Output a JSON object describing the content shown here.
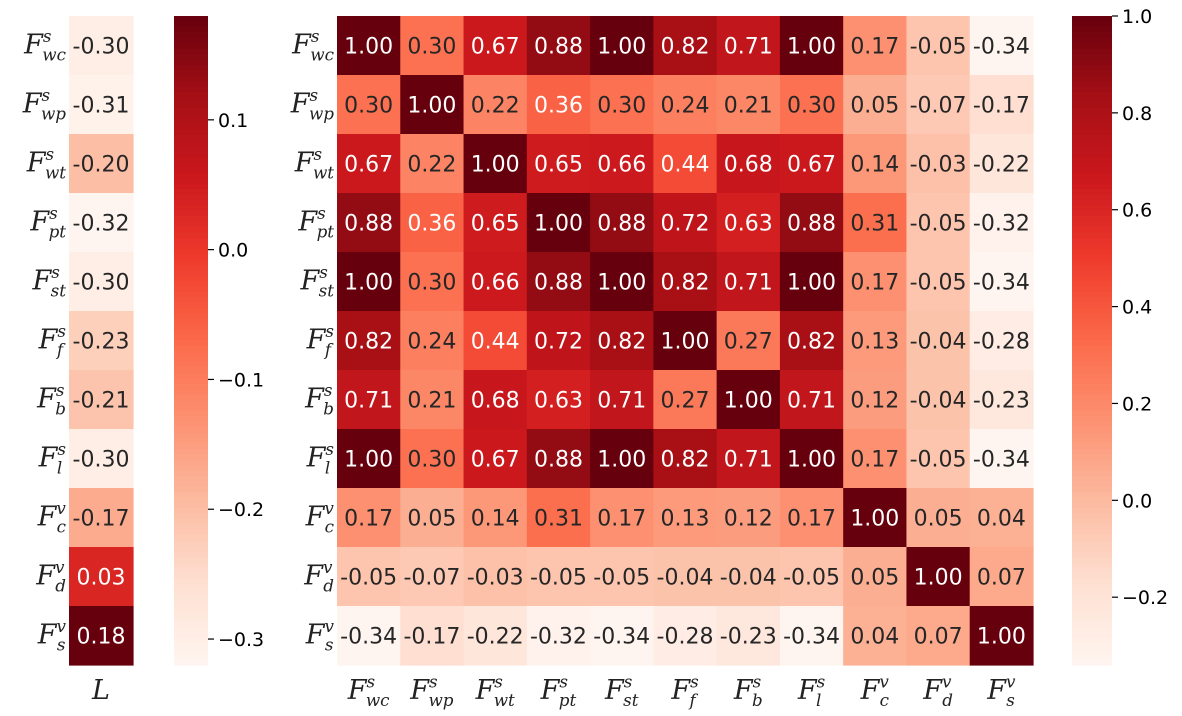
{
  "chart_data": [
    {
      "type": "heatmap",
      "rows": [
        {
          "base": "F",
          "sup": "s",
          "sub": "wc"
        },
        {
          "base": "F",
          "sup": "s",
          "sub": "wp"
        },
        {
          "base": "F",
          "sup": "s",
          "sub": "wt"
        },
        {
          "base": "F",
          "sup": "s",
          "sub": "pt"
        },
        {
          "base": "F",
          "sup": "s",
          "sub": "st"
        },
        {
          "base": "F",
          "sup": "s",
          "sub": "f"
        },
        {
          "base": "F",
          "sup": "s",
          "sub": "b"
        },
        {
          "base": "F",
          "sup": "s",
          "sub": "l"
        },
        {
          "base": "F",
          "sup": "v",
          "sub": "c"
        },
        {
          "base": "F",
          "sup": "v",
          "sub": "d"
        },
        {
          "base": "F",
          "sup": "v",
          "sub": "s"
        }
      ],
      "columns": [
        {
          "base": "L"
        }
      ],
      "values": [
        [
          -0.3
        ],
        [
          -0.31
        ],
        [
          -0.2
        ],
        [
          -0.32
        ],
        [
          -0.3
        ],
        [
          -0.23
        ],
        [
          -0.21
        ],
        [
          -0.3
        ],
        [
          -0.17
        ],
        [
          0.03
        ],
        [
          0.18
        ]
      ],
      "cell_labels": [
        [
          "-0.30"
        ],
        [
          "-0.31"
        ],
        [
          "-0.20"
        ],
        [
          "-0.32"
        ],
        [
          "-0.30"
        ],
        [
          "-0.23"
        ],
        [
          "-0.21"
        ],
        [
          "-0.30"
        ],
        [
          "-0.17"
        ],
        [
          "0.03"
        ],
        [
          "0.18"
        ]
      ],
      "colormap": "Reds",
      "vmin": -0.32,
      "vmax": 0.18,
      "colorbar_ticks": [
        "0.1",
        "0.0",
        "−0.1",
        "−0.2",
        "−0.3"
      ],
      "colorbar_tick_values": [
        0.1,
        0.0,
        -0.1,
        -0.2,
        -0.3
      ]
    },
    {
      "type": "heatmap",
      "rows": [
        {
          "base": "F",
          "sup": "s",
          "sub": "wc"
        },
        {
          "base": "F",
          "sup": "s",
          "sub": "wp"
        },
        {
          "base": "F",
          "sup": "s",
          "sub": "wt"
        },
        {
          "base": "F",
          "sup": "s",
          "sub": "pt"
        },
        {
          "base": "F",
          "sup": "s",
          "sub": "st"
        },
        {
          "base": "F",
          "sup": "s",
          "sub": "f"
        },
        {
          "base": "F",
          "sup": "s",
          "sub": "b"
        },
        {
          "base": "F",
          "sup": "s",
          "sub": "l"
        },
        {
          "base": "F",
          "sup": "v",
          "sub": "c"
        },
        {
          "base": "F",
          "sup": "v",
          "sub": "d"
        },
        {
          "base": "F",
          "sup": "v",
          "sub": "s"
        }
      ],
      "columns": [
        {
          "base": "F",
          "sup": "s",
          "sub": "wc"
        },
        {
          "base": "F",
          "sup": "s",
          "sub": "wp"
        },
        {
          "base": "F",
          "sup": "s",
          "sub": "wt"
        },
        {
          "base": "F",
          "sup": "s",
          "sub": "pt"
        },
        {
          "base": "F",
          "sup": "s",
          "sub": "st"
        },
        {
          "base": "F",
          "sup": "s",
          "sub": "f"
        },
        {
          "base": "F",
          "sup": "s",
          "sub": "b"
        },
        {
          "base": "F",
          "sup": "s",
          "sub": "l"
        },
        {
          "base": "F",
          "sup": "v",
          "sub": "c"
        },
        {
          "base": "F",
          "sup": "v",
          "sub": "d"
        },
        {
          "base": "F",
          "sup": "v",
          "sub": "s"
        }
      ],
      "values": [
        [
          1.0,
          0.3,
          0.67,
          0.88,
          1.0,
          0.82,
          0.71,
          1.0,
          0.17,
          -0.05,
          -0.34
        ],
        [
          0.3,
          1.0,
          0.22,
          0.36,
          0.3,
          0.24,
          0.21,
          0.3,
          0.05,
          -0.07,
          -0.17
        ],
        [
          0.67,
          0.22,
          1.0,
          0.65,
          0.66,
          0.44,
          0.68,
          0.67,
          0.14,
          -0.03,
          -0.22
        ],
        [
          0.88,
          0.36,
          0.65,
          1.0,
          0.88,
          0.72,
          0.63,
          0.88,
          0.31,
          -0.05,
          -0.32
        ],
        [
          1.0,
          0.3,
          0.66,
          0.88,
          1.0,
          0.82,
          0.71,
          1.0,
          0.17,
          -0.05,
          -0.34
        ],
        [
          0.82,
          0.24,
          0.44,
          0.72,
          0.82,
          1.0,
          0.27,
          0.82,
          0.13,
          -0.04,
          -0.28
        ],
        [
          0.71,
          0.21,
          0.68,
          0.63,
          0.71,
          0.27,
          1.0,
          0.71,
          0.12,
          -0.04,
          -0.23
        ],
        [
          1.0,
          0.3,
          0.67,
          0.88,
          1.0,
          0.82,
          0.71,
          1.0,
          0.17,
          -0.05,
          -0.34
        ],
        [
          0.17,
          0.05,
          0.14,
          0.31,
          0.17,
          0.13,
          0.12,
          0.17,
          1.0,
          0.05,
          0.04
        ],
        [
          -0.05,
          -0.07,
          -0.03,
          -0.05,
          -0.05,
          -0.04,
          -0.04,
          -0.05,
          0.05,
          1.0,
          0.07
        ],
        [
          -0.34,
          -0.17,
          -0.22,
          -0.32,
          -0.34,
          -0.28,
          -0.23,
          -0.34,
          0.04,
          0.07,
          1.0
        ]
      ],
      "cell_labels": [
        [
          "1.00",
          "0.30",
          "0.67",
          "0.88",
          "1.00",
          "0.82",
          "0.71",
          "1.00",
          "0.17",
          "-0.05",
          "-0.34"
        ],
        [
          "0.30",
          "1.00",
          "0.22",
          "0.36",
          "0.30",
          "0.24",
          "0.21",
          "0.30",
          "0.05",
          "-0.07",
          "-0.17"
        ],
        [
          "0.67",
          "0.22",
          "1.00",
          "0.65",
          "0.66",
          "0.44",
          "0.68",
          "0.67",
          "0.14",
          "-0.03",
          "-0.22"
        ],
        [
          "0.88",
          "0.36",
          "0.65",
          "1.00",
          "0.88",
          "0.72",
          "0.63",
          "0.88",
          "0.31",
          "-0.05",
          "-0.32"
        ],
        [
          "1.00",
          "0.30",
          "0.66",
          "0.88",
          "1.00",
          "0.82",
          "0.71",
          "1.00",
          "0.17",
          "-0.05",
          "-0.34"
        ],
        [
          "0.82",
          "0.24",
          "0.44",
          "0.72",
          "0.82",
          "1.00",
          "0.27",
          "0.82",
          "0.13",
          "-0.04",
          "-0.28"
        ],
        [
          "0.71",
          "0.21",
          "0.68",
          "0.63",
          "0.71",
          "0.27",
          "1.00",
          "0.71",
          "0.12",
          "-0.04",
          "-0.23"
        ],
        [
          "1.00",
          "0.30",
          "0.67",
          "0.88",
          "1.00",
          "0.82",
          "0.71",
          "1.00",
          "0.17",
          "-0.05",
          "-0.34"
        ],
        [
          "0.17",
          "0.05",
          "0.14",
          "0.31",
          "0.17",
          "0.13",
          "0.12",
          "0.17",
          "1.00",
          "0.05",
          "0.04"
        ],
        [
          "-0.05",
          "-0.07",
          "-0.03",
          "-0.05",
          "-0.05",
          "-0.04",
          "-0.04",
          "-0.05",
          "0.05",
          "1.00",
          "0.07"
        ],
        [
          "-0.34",
          "-0.17",
          "-0.22",
          "-0.32",
          "-0.34",
          "-0.28",
          "-0.23",
          "-0.34",
          "0.04",
          "0.07",
          "1.00"
        ]
      ],
      "colormap": "Reds",
      "vmin": -0.34,
      "vmax": 1.0,
      "colorbar_ticks": [
        "1.0",
        "0.8",
        "0.6",
        "0.4",
        "0.2",
        "0.0",
        "−0.2"
      ],
      "colorbar_tick_values": [
        1.0,
        0.8,
        0.6,
        0.4,
        0.2,
        0.0,
        -0.2
      ]
    }
  ],
  "colors": {
    "reds_scale": [
      "#fff5f0",
      "#fee0d2",
      "#fcbba1",
      "#fc9272",
      "#fb6a4a",
      "#ef3b2c",
      "#cb181d",
      "#a50f15",
      "#67000d"
    ],
    "text_dark": "#262626",
    "text_light": "#ffffff"
  }
}
